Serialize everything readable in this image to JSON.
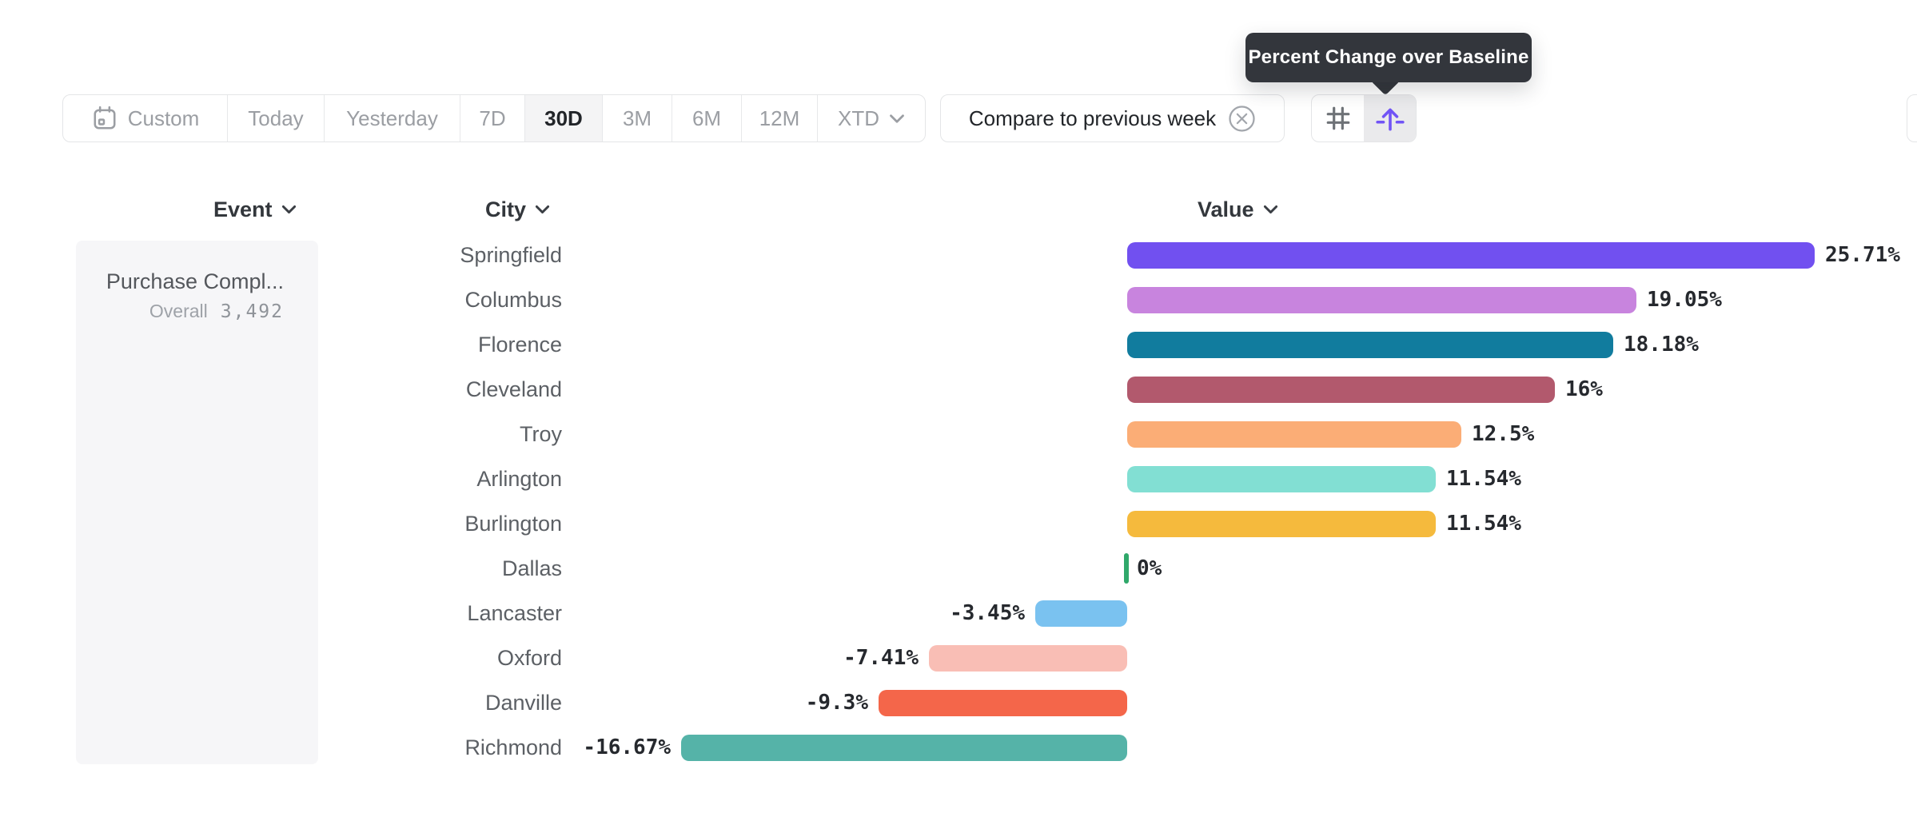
{
  "tooltip": {
    "text": "Percent Change over Baseline"
  },
  "toolbar": {
    "ranges": [
      {
        "label": "Custom"
      },
      {
        "label": "Today"
      },
      {
        "label": "Yesterday"
      },
      {
        "label": "7D"
      },
      {
        "label": "30D"
      },
      {
        "label": "3M"
      },
      {
        "label": "6M"
      },
      {
        "label": "12M"
      },
      {
        "label": "XTD"
      }
    ],
    "selected_range": "30D",
    "compare_label": "Compare to previous week",
    "icon_buttons": [
      "grid-icon",
      "uplift-icon"
    ],
    "active_icon": "uplift-icon"
  },
  "columns": {
    "event": "Event",
    "city": "City",
    "value": "Value"
  },
  "event_panel": {
    "event_name": "Purchase Compl...",
    "overall_label": "Overall",
    "overall_value": "3,492"
  },
  "chart_data": {
    "type": "bar",
    "orientation": "horizontal",
    "title": "Percent Change over Baseline",
    "unit": "percent",
    "baseline": 0,
    "xlim": [
      -16.67,
      25.71
    ],
    "categories": [
      "Springfield",
      "Columbus",
      "Florence",
      "Cleveland",
      "Troy",
      "Arlington",
      "Burlington",
      "Dallas",
      "Lancaster",
      "Oxford",
      "Danville",
      "Richmond"
    ],
    "values": [
      25.71,
      19.05,
      18.18,
      16,
      12.5,
      11.54,
      11.54,
      0,
      -3.45,
      -7.41,
      -9.3,
      -16.67
    ],
    "labels": [
      "25.71%",
      "19.05%",
      "18.18%",
      "16%",
      "12.5%",
      "11.54%",
      "11.54%",
      "0%",
      "-3.45%",
      "-7.41%",
      "-9.3%",
      "-16.67%"
    ],
    "colors": [
      "#7150F0",
      "#C884DE",
      "#117C9E",
      "#B2596D",
      "#FBAD76",
      "#82DFD3",
      "#F5BA3D",
      "#2FA86A",
      "#7AC2F0",
      "#F9BEB5",
      "#F4664A",
      "#55B3A8"
    ]
  },
  "colors": {
    "accent": "#7154F6",
    "zero_tick": "#2FA86A",
    "tooltip_bg": "#33363C",
    "border": "#E4E5E7"
  }
}
